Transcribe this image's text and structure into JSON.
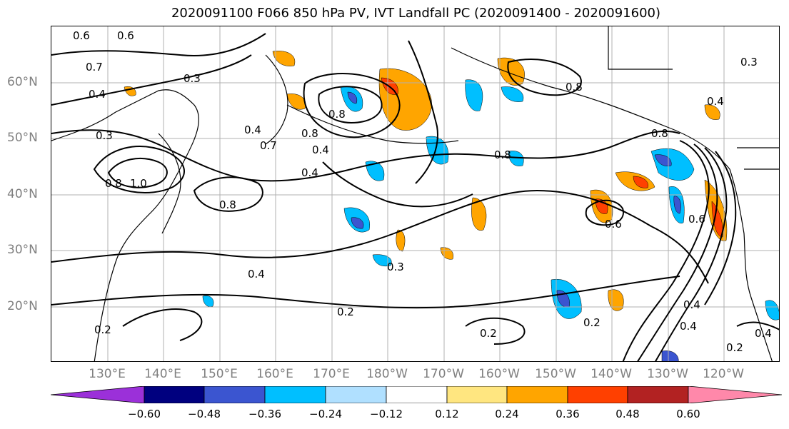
{
  "title": "2020091100 F066 850 hPa PV, IVT Landfall PC (2020091400 - 2020091600)",
  "lat_labels": [
    "60°N",
    "50°N",
    "40°N",
    "30°N",
    "20°N"
  ],
  "lon_labels": [
    "130°E",
    "140°E",
    "150°E",
    "160°E",
    "170°E",
    "180°W",
    "170°W",
    "160°W",
    "150°W",
    "140°W",
    "130°W",
    "120°W"
  ],
  "colorbar": {
    "ticks": [
      "−0.60",
      "−0.48",
      "−0.36",
      "−0.24",
      "−0.12",
      "0.12",
      "0.24",
      "0.36",
      "0.48",
      "0.60"
    ],
    "colors": [
      "#9b30d9",
      "#00007f",
      "#3b55d0",
      "#00bfff",
      "#b0e0ff",
      "#ffffff",
      "#ffe680",
      "#ffa500",
      "#ff4000",
      "#b22222",
      "#ff88aa"
    ]
  },
  "contour_labels": [
    "0.6",
    "0.7",
    "0.4",
    "0.3",
    "0.3",
    "0.4",
    "0.8",
    "0.8",
    "0.7",
    "0.4",
    "0.4",
    "0.8",
    "1.0",
    "0.8",
    "0.4",
    "0.3",
    "0.4",
    "0.2",
    "0.2",
    "0.2",
    "0.2",
    "0.6",
    "0.6",
    "0.8",
    "0.8",
    "0.4",
    "0.4",
    "0.6",
    "0.3",
    "0.2",
    "0.8",
    "0.4"
  ]
}
